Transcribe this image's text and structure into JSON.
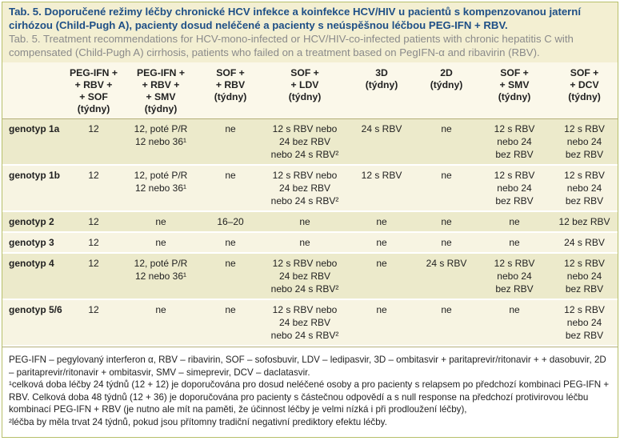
{
  "title": {
    "cz": "Tab. 5. Doporučené režimy léčby chronické HCV infekce a koinfekce HCV/HIV u pacientů s kompenzovanou jaterní cirhózou (Child-Pugh A), pacienty dosud neléčené a pacienty s neúspěšnou léčbou PEG-IFN + RBV.",
    "en": "Tab. 5. Treatment recommendations for HCV-mono-infected or HCV/HIV-co-infected patients with chronic hepatitis C with compensated (Child-Pugh A) cirrhosis, patients who failed on a treatment based on PegIFN-α and ribavirin (RBV)."
  },
  "table": {
    "columns": [
      "",
      "PEG-IFN +\n+ RBV +\n+ SOF\n(týdny)",
      "PEG-IFN +\n+ RBV +\n+ SMV\n(týdny)",
      "SOF +\n+ RBV\n(týdny)",
      "SOF +\n+ LDV\n(týdny)",
      "3D\n(týdny)",
      "2D\n(týdny)",
      "SOF +\n+ SMV\n(týdny)",
      "SOF +\n+ DCV\n(týdny)"
    ],
    "rows": [
      {
        "label": "genotyp 1a",
        "cells": [
          "12",
          "12, poté P/R\n12 nebo 36¹",
          "ne",
          "12 s RBV nebo\n24 bez RBV\nnebo 24 s RBV²",
          "24 s RBV",
          "ne",
          "12 s RBV\nnebo 24\nbez RBV",
          "12 s RBV\nnebo 24\nbez RBV"
        ]
      },
      {
        "label": "genotyp 1b",
        "cells": [
          "12",
          "12, poté P/R\n12 nebo 36¹",
          "ne",
          "12 s RBV nebo\n24 bez RBV\nnebo 24 s RBV²",
          "12 s RBV",
          "ne",
          "12 s RBV\nnebo 24\nbez RBV",
          "12 s RBV\nnebo 24\nbez RBV"
        ]
      },
      {
        "label": "genotyp 2",
        "cells": [
          "12",
          "ne",
          "16–20",
          "ne",
          "ne",
          "ne",
          "ne",
          "12 bez RBV"
        ]
      },
      {
        "label": "genotyp 3",
        "cells": [
          "12",
          "ne",
          "ne",
          "ne",
          "ne",
          "ne",
          "ne",
          "24 s RBV"
        ]
      },
      {
        "label": "genotyp 4",
        "cells": [
          "12",
          "12, poté P/R\n12 nebo 36¹",
          "ne",
          "12 s RBV nebo\n24 bez RBV\nnebo 24 s RBV²",
          "ne",
          "24 s RBV",
          "12 s RBV\nnebo 24\nbez RBV",
          "12 s RBV\nnebo 24\nbez RBV"
        ]
      },
      {
        "label": "genotyp 5/6",
        "cells": [
          "12",
          "ne",
          "ne",
          "12 s RBV nebo\n24 bez RBV\nnebo 24 s RBV²",
          "ne",
          "ne",
          "ne",
          "12 s RBV\nnebo 24\nbez RBV"
        ]
      }
    ]
  },
  "notes": [
    "PEG-IFN – pegylovaný interferon α, RBV – ribavirin, SOF – sofosbuvir, LDV – ledipasvir, 3D – ombitasvir + paritaprevir/ritonavir + + dasobuvir, 2D – paritaprevir/ritonavir + ombitasvir, SMV – simeprevir, DCV – daclatasvir.",
    "¹celková doba léčby 24 týdnů (12 + 12) je doporučována pro dosud neléčené osoby a pro pacienty s relapsem po předchozí kombinaci PEG-IFN + RBV. Celková doba 48 týdnů (12 + 36) je doporučována pro pacienty s částečnou odpovědí a s null response na předchozí protivirovou léčbu kombinací PEG-IFN + RBV (je nutno ale mít na paměti, že účinnost léčby je velmi nízká i při prodloužení léčby),",
    "²léčba by měla trvat 24 týdnů, pokud jsou přítomny tradiční negativní prediktory efektu léčby."
  ]
}
